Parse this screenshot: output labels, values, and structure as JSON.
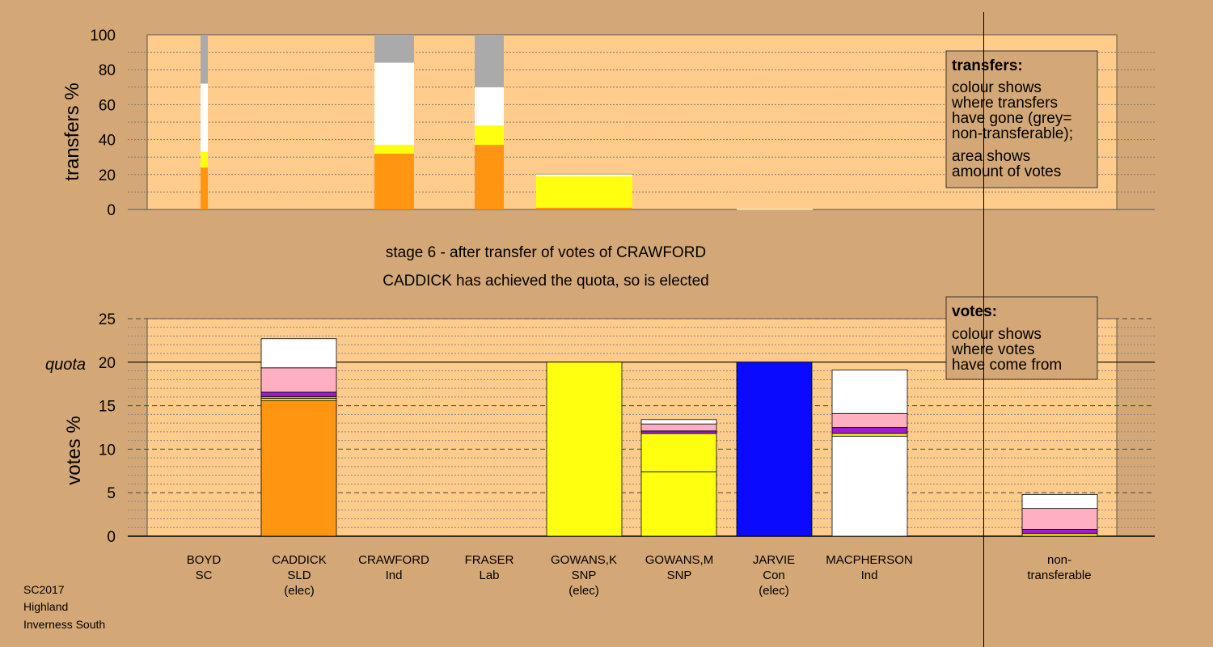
{
  "chart_data": [
    {
      "type": "bar",
      "subtype": "stacked",
      "ylabel": "transfers %",
      "ylim": [
        0,
        100
      ],
      "yticks": [
        0,
        20,
        40,
        60,
        80,
        100
      ],
      "grid": true,
      "categories": [
        "BOYD",
        "CRAWFORD",
        "FRASER",
        "GOWANS,M",
        "MACPHERSON"
      ],
      "segment_order": [
        "CADDICK",
        "GOWANS,K/GOWANS,M",
        "MACPHERSON",
        "non-transferable"
      ],
      "bars": [
        {
          "category": "BOYD",
          "segments": [
            {
              "to": "CADDICK",
              "color": "#ff9510",
              "value": 24
            },
            {
              "to": "GOWANS,K/GOWANS,M",
              "color": "#ffff10",
              "value": 9
            },
            {
              "to": "MACPHERSON",
              "color": "#ffffff",
              "value": 39
            },
            {
              "to": "non-transferable",
              "color": "#aaaaaa",
              "value": 28
            }
          ]
        },
        {
          "category": "CRAWFORD",
          "segments": [
            {
              "to": "CADDICK",
              "color": "#ff9510",
              "value": 32
            },
            {
              "to": "GOWANS,K/GOWANS,M",
              "color": "#ffff10",
              "value": 5
            },
            {
              "to": "MACPHERSON",
              "color": "#ffffff",
              "value": 47
            },
            {
              "to": "non-transferable",
              "color": "#aaaaaa",
              "value": 16
            }
          ]
        },
        {
          "category": "FRASER",
          "segments": [
            {
              "to": "CADDICK",
              "color": "#ff9510",
              "value": 37
            },
            {
              "to": "GOWANS,K/GOWANS,M",
              "color": "#ffff10",
              "value": 11
            },
            {
              "to": "MACPHERSON",
              "color": "#ffffff",
              "value": 22
            },
            {
              "to": "non-transferable",
              "color": "#aaaaaa",
              "value": 30
            }
          ]
        },
        {
          "category": "GOWANS,M",
          "segments": [
            {
              "to": "CADDICK",
              "color": "#ff9510",
              "value": 1
            },
            {
              "to": "GOWANS,K/GOWANS,M",
              "color": "#ffff10",
              "value": 18
            },
            {
              "to": "MACPHERSON",
              "color": "#ffffff",
              "value": 1
            },
            {
              "to": "non-transferable",
              "color": "#aaaaaa",
              "value": 0.5
            }
          ]
        },
        {
          "category": "MACPHERSON",
          "segments": [
            {
              "to": "CADDICK",
              "color": "#ff9510",
              "value": 0
            },
            {
              "to": "GOWANS,K/GOWANS,M",
              "color": "#ffff10",
              "value": 0
            },
            {
              "to": "MACPHERSON",
              "color": "#ffffff",
              "value": 0.3
            },
            {
              "to": "non-transferable",
              "color": "#aaaaaa",
              "value": 0
            }
          ]
        }
      ],
      "legend": {
        "title": "transfers:",
        "lines": [
          "colour shows",
          "where transfers",
          "have gone (grey=",
          "non-transferable);",
          "area shows",
          "amount of votes"
        ]
      }
    },
    {
      "type": "bar",
      "subtype": "stacked",
      "ylabel": "votes %",
      "ylim": [
        0,
        25
      ],
      "yticks": [
        0,
        5,
        10,
        15,
        20,
        25
      ],
      "quota": 20,
      "quota_label": "quota",
      "grid": true,
      "candidates": [
        {
          "name": "BOYD",
          "party": "SC",
          "note": ""
        },
        {
          "name": "CADDICK",
          "party": "SLD",
          "note": "(elec)"
        },
        {
          "name": "CRAWFORD",
          "party": "Ind",
          "note": ""
        },
        {
          "name": "FRASER",
          "party": "Lab",
          "note": ""
        },
        {
          "name": "GOWANS,K",
          "party": "SNP",
          "note": "(elec)"
        },
        {
          "name": "GOWANS,M",
          "party": "SNP",
          "note": ""
        },
        {
          "name": "JARVIE",
          "party": "Con",
          "note": "(elec)"
        },
        {
          "name": "MACPHERSON",
          "party": "Ind",
          "note": ""
        }
      ],
      "nontransferable_label": [
        "non-",
        "transferable"
      ],
      "bars": [
        {
          "category": "BOYD",
          "segments": []
        },
        {
          "category": "CADDICK",
          "segments": [
            {
              "color": "#ff9510",
              "value": 15.6
            },
            {
              "color": "#ffff10",
              "value": 0.25
            },
            {
              "color": "#ff9510",
              "value": 0.2
            },
            {
              "color": "#9d1bd3",
              "value": 0.5
            },
            {
              "color": "#ffb0c0",
              "value": 2.8
            },
            {
              "color": "#ffffff",
              "value": 3.35
            }
          ]
        },
        {
          "category": "CRAWFORD",
          "segments": []
        },
        {
          "category": "FRASER",
          "segments": []
        },
        {
          "category": "GOWANS,K",
          "segments": [
            {
              "color": "#ffff10",
              "value": 20
            }
          ]
        },
        {
          "category": "GOWANS,M",
          "segments": [
            {
              "color": "#ffff10",
              "value": 7.4
            },
            {
              "color": "#ffff10",
              "value": 4.4
            },
            {
              "color": "#9d1bd3",
              "value": 0.3
            },
            {
              "color": "#ffb0c0",
              "value": 0.8
            },
            {
              "color": "#ffffff",
              "value": 0.5
            }
          ]
        },
        {
          "category": "JARVIE",
          "segments": [
            {
              "color": "#0a0aff",
              "value": 20
            }
          ]
        },
        {
          "category": "MACPHERSON",
          "segments": [
            {
              "color": "#ffffff",
              "value": 11.5
            },
            {
              "color": "#ffff10",
              "value": 0.3
            },
            {
              "color": "#9d1bd3",
              "value": 0.7
            },
            {
              "color": "#ffb0c0",
              "value": 1.6
            },
            {
              "color": "#ffffff",
              "value": 5.0
            }
          ]
        },
        {
          "category": "non-transferable",
          "segments": [
            {
              "color": "#ffff10",
              "value": 0.3
            },
            {
              "color": "#9d1bd3",
              "value": 0.5
            },
            {
              "color": "#ffb0c0",
              "value": 2.4
            },
            {
              "color": "#ffffff",
              "value": 1.6
            }
          ]
        }
      ],
      "legend": {
        "title": "votes:",
        "lines": [
          "colour shows",
          "where votes",
          "have come from"
        ]
      }
    }
  ],
  "stage_text": "stage 6 - after transfer of votes of CRAWFORD",
  "result_text": "CADDICK has achieved the quota, so is elected",
  "footer": [
    "SC2017",
    "Highland",
    "Inverness South"
  ],
  "colors": {
    "background": "#d4a876",
    "plot_area": "#ffcc8c",
    "caddick": "#ff9510",
    "snp": "#ffff10",
    "con": "#0a0aff",
    "ind": "#ffffff",
    "lab": "#ffb0c0",
    "sc": "#9d1bd3",
    "grey": "#aaaaaa"
  }
}
